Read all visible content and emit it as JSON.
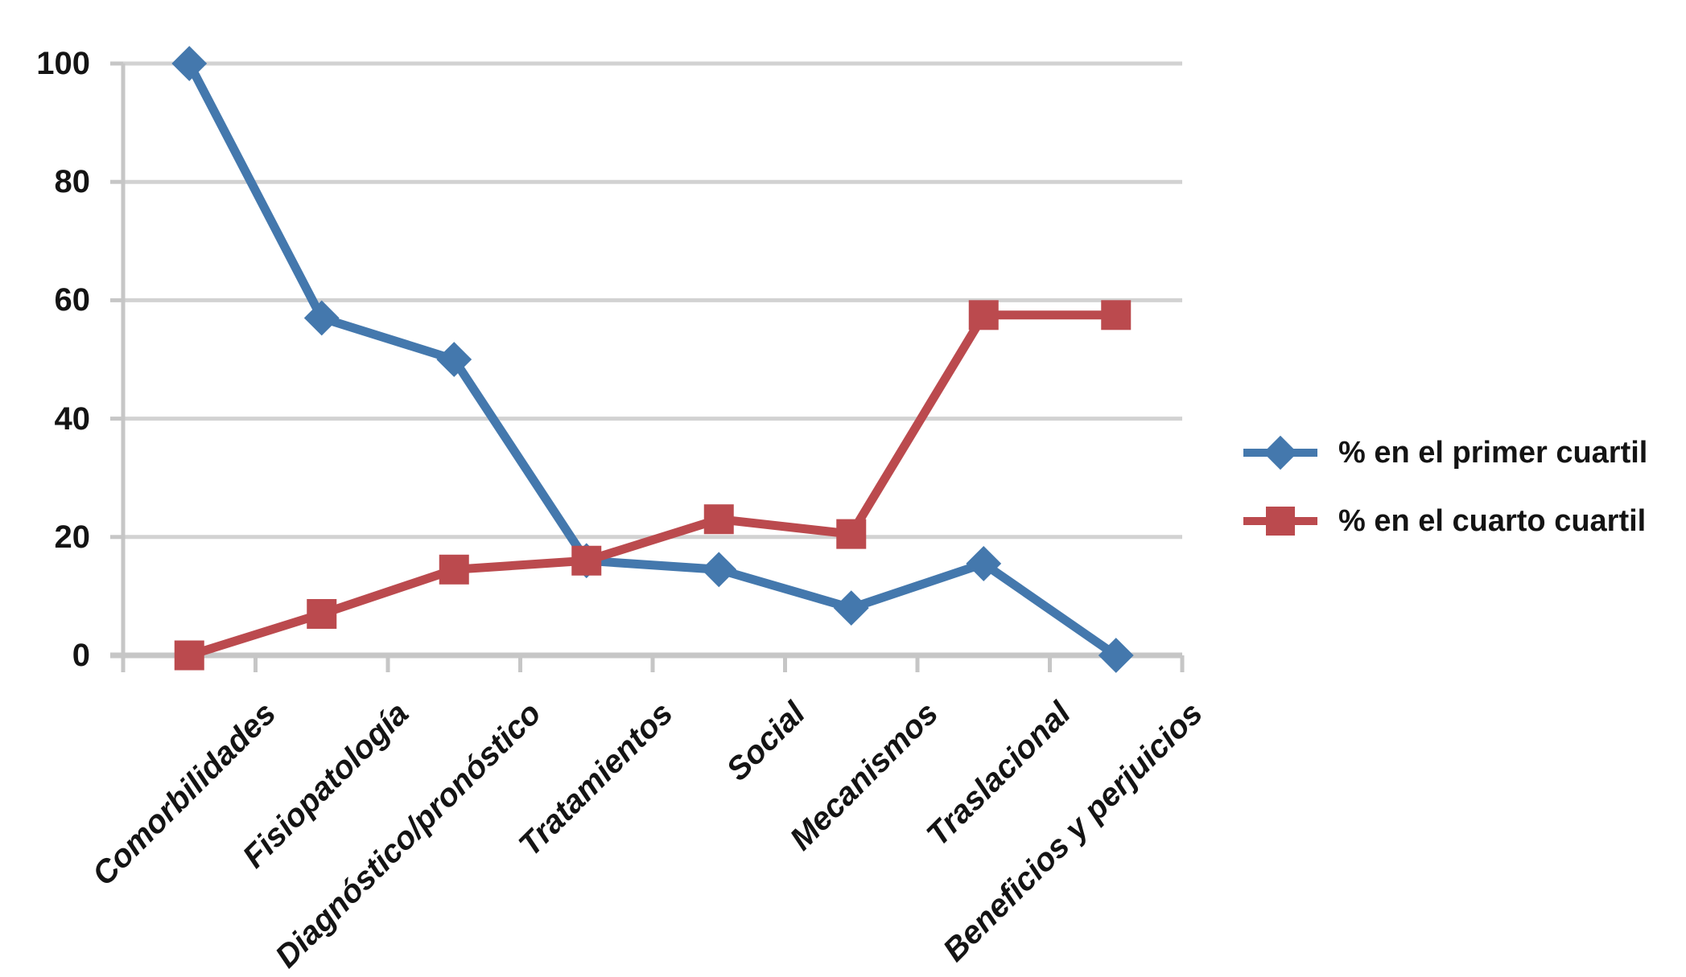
{
  "chart_data": {
    "type": "line",
    "categories": [
      "Comorbilidades",
      "Fisiopatología",
      "Diagnóstico/pronóstico",
      "Tratamientos",
      "Social",
      "Mecanismos",
      "Traslacional",
      "Beneficios y perjuicios"
    ],
    "series": [
      {
        "name": "% en el primer cuartil",
        "marker": "diamond",
        "color": "#4478ad",
        "values": [
          100,
          57,
          50,
          16,
          14.5,
          8,
          15.5,
          0
        ]
      },
      {
        "name": "% en el cuarto cuartil",
        "marker": "square",
        "color": "#bb4a4e",
        "values": [
          0,
          7,
          14.5,
          16,
          23,
          20.5,
          57.5,
          57.5
        ]
      }
    ],
    "ylim": [
      0,
      100
    ],
    "yticks": [
      0,
      20,
      40,
      60,
      80,
      100
    ],
    "grid": "horizontal-only",
    "legend_position": "right",
    "colors": {
      "gridline": "#d2d2d2",
      "axis": "#c6c6c6",
      "text": "#141414",
      "background": "#ffffff"
    }
  }
}
